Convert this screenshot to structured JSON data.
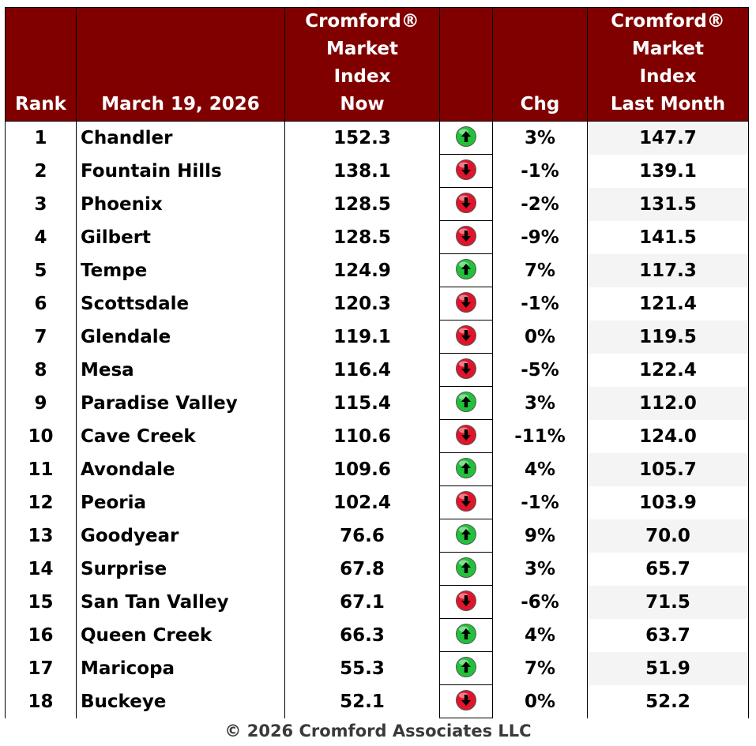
{
  "header": {
    "rank": "Rank",
    "date": "March 19, 2026",
    "now_lines": [
      "Cromford®",
      "Market",
      "Index",
      "Now"
    ],
    "chg": "Chg",
    "last_lines": [
      "Cromford®",
      "Market",
      "Index",
      "Last Month"
    ]
  },
  "colors": {
    "header_bg": "#800000",
    "up": "#21c23a",
    "down": "#e0142a"
  },
  "rows": [
    {
      "rank": "1",
      "city": "Chandler",
      "now": "152.3",
      "dir": "up",
      "icon": "green-up-arrow-icon",
      "chg": "3%",
      "last": "147.7"
    },
    {
      "rank": "2",
      "city": "Fountain Hills",
      "now": "138.1",
      "dir": "down",
      "icon": "red-down-arrow-icon",
      "chg": "-1%",
      "last": "139.1"
    },
    {
      "rank": "3",
      "city": "Phoenix",
      "now": "128.5",
      "dir": "down",
      "icon": "red-down-arrow-icon",
      "chg": "-2%",
      "last": "131.5"
    },
    {
      "rank": "4",
      "city": "Gilbert",
      "now": "128.5",
      "dir": "down",
      "icon": "red-down-arrow-icon",
      "chg": "-9%",
      "last": "141.5"
    },
    {
      "rank": "5",
      "city": "Tempe",
      "now": "124.9",
      "dir": "up",
      "icon": "green-up-arrow-icon",
      "chg": "7%",
      "last": "117.3"
    },
    {
      "rank": "6",
      "city": "Scottsdale",
      "now": "120.3",
      "dir": "down",
      "icon": "red-down-arrow-icon",
      "chg": "-1%",
      "last": "121.4"
    },
    {
      "rank": "7",
      "city": "Glendale",
      "now": "119.1",
      "dir": "down",
      "icon": "red-down-arrow-icon",
      "chg": "0%",
      "last": "119.5"
    },
    {
      "rank": "8",
      "city": "Mesa",
      "now": "116.4",
      "dir": "down",
      "icon": "red-down-arrow-icon",
      "chg": "-5%",
      "last": "122.4"
    },
    {
      "rank": "9",
      "city": "Paradise Valley",
      "now": "115.4",
      "dir": "up",
      "icon": "green-up-arrow-icon",
      "chg": "3%",
      "last": "112.0"
    },
    {
      "rank": "10",
      "city": "Cave Creek",
      "now": "110.6",
      "dir": "down",
      "icon": "red-down-arrow-icon",
      "chg": "-11%",
      "last": "124.0"
    },
    {
      "rank": "11",
      "city": "Avondale",
      "now": "109.6",
      "dir": "up",
      "icon": "green-up-arrow-icon",
      "chg": "4%",
      "last": "105.7"
    },
    {
      "rank": "12",
      "city": "Peoria",
      "now": "102.4",
      "dir": "down",
      "icon": "red-down-arrow-icon",
      "chg": "-1%",
      "last": "103.9"
    },
    {
      "rank": "13",
      "city": "Goodyear",
      "now": "76.6",
      "dir": "up",
      "icon": "green-up-arrow-icon",
      "chg": "9%",
      "last": "70.0"
    },
    {
      "rank": "14",
      "city": "Surprise",
      "now": "67.8",
      "dir": "up",
      "icon": "green-up-arrow-icon",
      "chg": "3%",
      "last": "65.7"
    },
    {
      "rank": "15",
      "city": "San Tan Valley",
      "now": "67.1",
      "dir": "down",
      "icon": "red-down-arrow-icon",
      "chg": "-6%",
      "last": "71.5"
    },
    {
      "rank": "16",
      "city": "Queen Creek",
      "now": "66.3",
      "dir": "up",
      "icon": "green-up-arrow-icon",
      "chg": "4%",
      "last": "63.7"
    },
    {
      "rank": "17",
      "city": "Maricopa",
      "now": "55.3",
      "dir": "up",
      "icon": "green-up-arrow-icon",
      "chg": "7%",
      "last": "51.9"
    },
    {
      "rank": "18",
      "city": "Buckeye",
      "now": "52.1",
      "dir": "down",
      "icon": "red-down-arrow-icon",
      "chg": "0%",
      "last": "52.2"
    }
  ],
  "footer": "© 2026 Cromford Associates LLC"
}
